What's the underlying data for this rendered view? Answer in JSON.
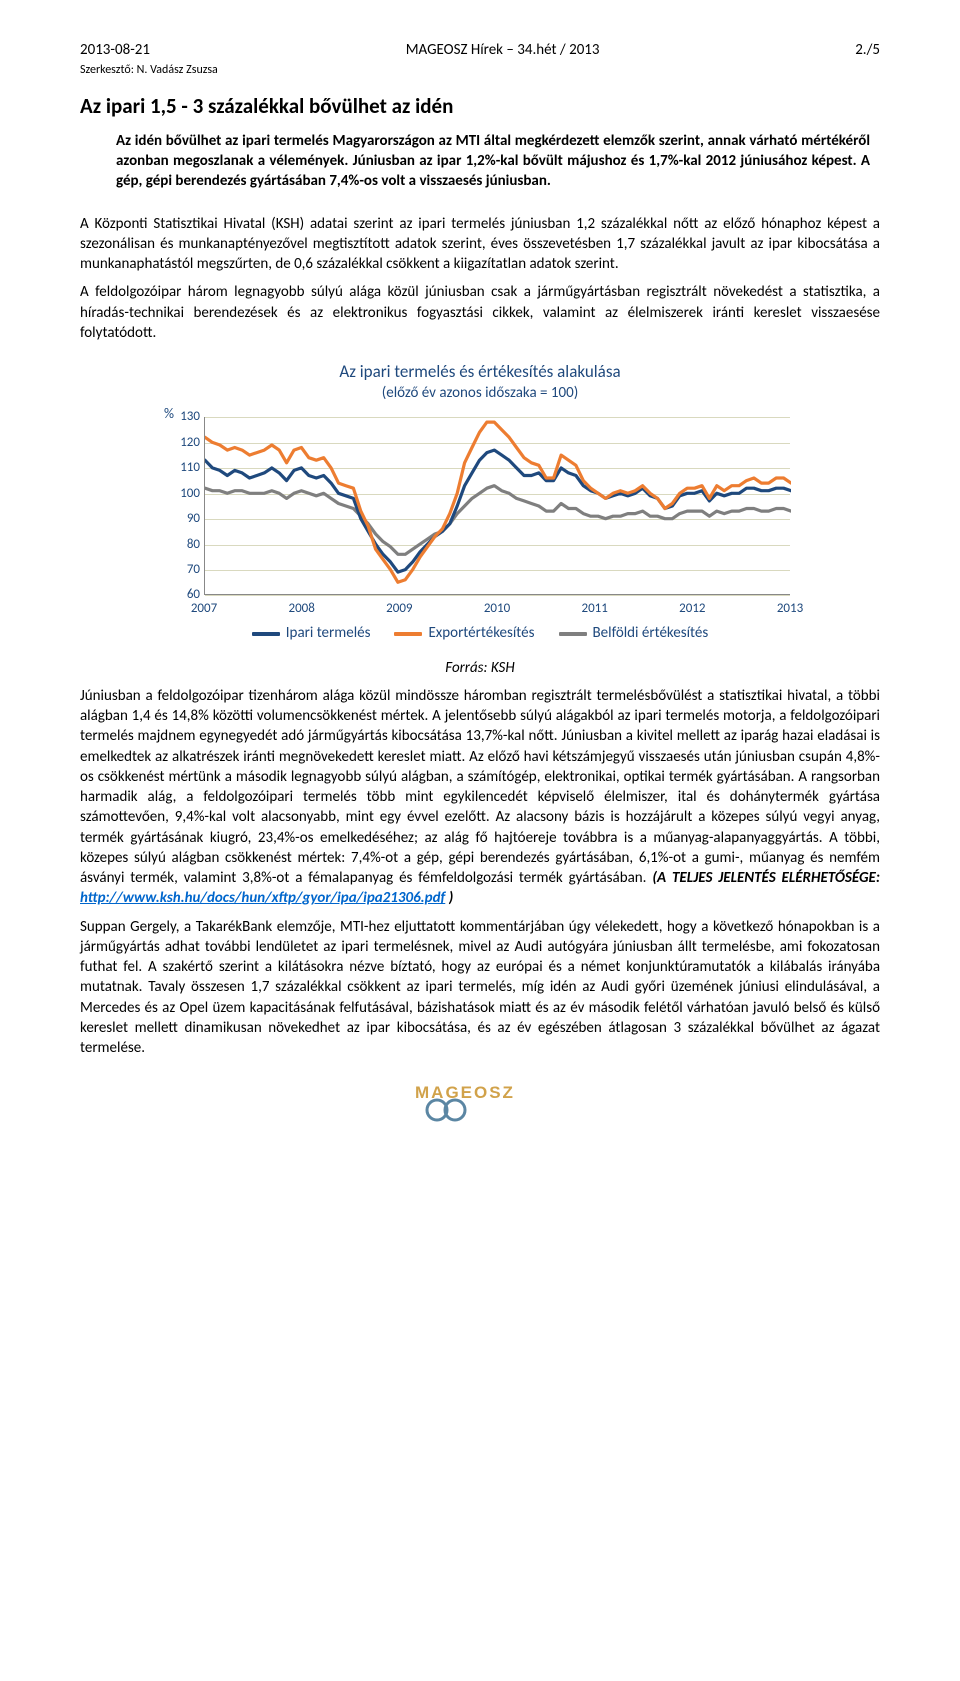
{
  "header": {
    "left_date": "2013-08-21",
    "center_title": "MAGEOSZ Hírek – 34.hét / 2013",
    "right_page": "2./5",
    "editor_line": "Szerkesztő: N. Vadász Zsuzsa"
  },
  "title": "Az ipari 1,5 - 3 százalékkal bővülhet az idén",
  "lead": "Az idén bővülhet az ipari termelés Magyarországon az MTI által megkérdezett elemzők szerint, annak várható mértékéről azonban megoszlanak a vélemények. Júniusban az ipar 1,2%-kal bővült májushoz és 1,7%-kal 2012 júniusához képest. A gép, gépi berendezés gyártásában 7,4%-os volt a visszaesés júniusban.",
  "p1": "A Központi Statisztikai Hivatal (KSH) adatai szerint az ipari termelés júniusban 1,2 százalékkal nőtt az előző hónaphoz képest a szezonálisan és munkanaptényezővel megtisztított adatok szerint, éves összevetésben 1,7 százalékkal javult az ipar kibocsátása a munkanaphatástól megszűrten, de 0,6 százalékkal csökkent a kiigazítatlan adatok szerint.",
  "p2": "A feldolgozóipar három legnagyobb súlyú alága közül júniusban csak a járműgyártásban regisztrált növekedést a statisztika, a híradás-technikai berendezések és az elektronikus fogyasztási cikkek, valamint az élelmiszerek iránti kereslet visszaesése folytatódott.",
  "chart": {
    "title": "Az ipari termelés és értékesítés alakulása",
    "subtitle": "(előző év azonos időszaka = 100)",
    "y_pct_label": "%",
    "y_min": 60,
    "y_max": 130,
    "y_ticks": [
      60,
      70,
      80,
      90,
      100,
      110,
      120,
      130
    ],
    "x_labels": [
      "2007",
      "2008",
      "2009",
      "2010",
      "2011",
      "2012",
      "2013"
    ],
    "grid_color": "#d9d9bf",
    "axis_color": "#888888",
    "background_color": "#ffffff",
    "text_color": "#1f497d",
    "series": {
      "production": {
        "label": "Ipari termelés",
        "color": "#1f497d",
        "stroke_width": 3.2,
        "values": [
          113,
          110,
          109,
          107,
          109,
          108,
          106,
          107,
          108,
          110,
          108,
          105,
          109,
          110,
          107,
          106,
          107,
          104,
          100,
          99,
          98,
          90,
          85,
          80,
          76,
          73,
          69,
          70,
          73,
          77,
          80,
          83,
          85,
          88,
          95,
          103,
          108,
          113,
          116,
          117,
          115,
          113,
          110,
          107,
          107,
          108,
          105,
          105,
          110,
          108,
          107,
          103,
          101,
          100,
          98,
          99,
          100,
          99,
          100,
          102,
          99,
          98,
          94,
          95,
          99,
          100,
          100,
          101,
          97,
          100,
          99,
          100,
          100,
          102,
          102,
          101,
          101,
          102,
          102,
          101
        ]
      },
      "export_sales": {
        "label": "Exportértékesítés",
        "color": "#ed7d31",
        "stroke_width": 3.2,
        "values": [
          122,
          120,
          119,
          117,
          118,
          117,
          115,
          116,
          117,
          119,
          117,
          112,
          117,
          118,
          114,
          113,
          114,
          110,
          104,
          103,
          102,
          93,
          87,
          78,
          74,
          70,
          65,
          66,
          70,
          75,
          79,
          83,
          86,
          92,
          100,
          112,
          118,
          124,
          128,
          128,
          125,
          122,
          118,
          114,
          112,
          111,
          106,
          106,
          115,
          113,
          111,
          105,
          102,
          100,
          98,
          100,
          101,
          100,
          101,
          103,
          100,
          98,
          94,
          96,
          100,
          102,
          102,
          103,
          98,
          103,
          101,
          103,
          103,
          105,
          106,
          104,
          104,
          106,
          106,
          104
        ]
      },
      "domestic_sales": {
        "label": "Belföldi értékesítés",
        "color": "#7f7f7f",
        "stroke_width": 3.2,
        "values": [
          102,
          101,
          101,
          100,
          101,
          101,
          100,
          100,
          100,
          101,
          100,
          98,
          100,
          101,
          100,
          99,
          100,
          98,
          96,
          95,
          94,
          91,
          88,
          84,
          81,
          79,
          76,
          76,
          78,
          80,
          82,
          84,
          85,
          88,
          92,
          95,
          98,
          100,
          102,
          103,
          101,
          100,
          98,
          97,
          96,
          95,
          93,
          93,
          96,
          94,
          94,
          92,
          91,
          91,
          90,
          91,
          91,
          92,
          92,
          93,
          91,
          91,
          90,
          90,
          92,
          93,
          93,
          93,
          91,
          93,
          92,
          93,
          93,
          94,
          94,
          93,
          93,
          94,
          94,
          93
        ]
      }
    }
  },
  "source_label": "Forrás: KSH",
  "p3_part1": "Júniusban a feldolgozóipar tizenhárom alága közül mindössze háromban regisztrált termelésbővülést a statisztikai hivatal, a többi alágban 1,4 és 14,8% közötti volumencsökkenést mértek. A jelentősebb súlyú alágakból az ipari termelés motorja, a feldolgozóipari termelés majdnem egynegyedét adó járműgyártás kibocsátása 13,7%-kal nőtt. Júniusban a kivitel mellett az iparág hazai eladásai is emelkedtek az alkatrészek iránti megnövekedett kereslet miatt. Az előző havi kétszámjegyű visszaesés után júniusban csupán 4,8%-os csökkenést mértünk a második legnagyobb súlyú alágban, a számítógép, elektronikai, optikai termék gyártásában. A rangsorban harmadik alág, a feldolgozóipari termelés több mint egykilencedét képviselő élelmiszer, ital és dohánytermék gyártása számottevően, 9,4%-kal volt alacsonyabb, mint egy évvel ezelőtt. Az alacsony bázis is hozzájárult a közepes súlyú vegyi anyag, termék gyártásának kiugró, 23,4%-os emelkedéséhez; az alág fő hajtóereje továbbra is a műanyag-alapanyaggyártás. A többi, közepes súlyú alágban csökkenést mértek: 7,4%-ot a gép, gépi berendezés gyártásában, 6,1%-ot a gumi-, műanyag és nemfém ásványi termék, valamint 3,8%-ot a fémalapanyag és fémfeldolgozási termék gyártásában. ",
  "p3_bold": "(A TELJES JELENTÉS ELÉRHETŐSÉGE:  ",
  "p3_link_text": "http://www.ksh.hu/docs/hun/xftp/gyor/ipa/ipa21306.pdf",
  "p3_close": ")",
  "p4": "Suppan Gergely, a TakarékBank elemzője, MTI-hez eljuttatott kommentárjában úgy vélekedett, hogy a következő hónapokban is a járműgyártás adhat további lendületet az ipari termelésnek, mivel az Audi autógyára júniusban állt termelésbe, ami fokozatosan futhat fel. A szakértő szerint a kilátásokra nézve bíztató, hogy az európai és a német konjunktúramutatók a kilábalás irányába mutatnak. Tavaly összesen 1,7 százalékkal csökkent az ipari termelés, míg idén az Audi győri üzemének júniusi elindulásával, a Mercedes és az Opel üzem kapacitásának felfutásával, bázishatások miatt és az év második felétől várhatóan javuló belső és külső kereslet mellett dinamikusan növekedhet az ipar kibocsátása, és az év egészében átlagosan 3 százalékkal bővülhet az ágazat termelése.",
  "logo": {
    "text": "MAGEOSZ",
    "color_text": "#d1a24a",
    "color_gear": "#5b86a3"
  }
}
